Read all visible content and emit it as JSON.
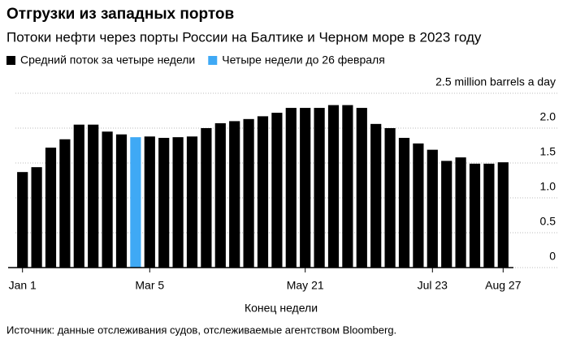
{
  "chart_data": {
    "type": "bar",
    "title": "Отгрузки из западных портов",
    "subtitle": "Потоки нефти через порты России на Балтике и Черном море в 2023 году",
    "xlabel": "Конец недели",
    "source": "Источник: данные отслеживания судов, отслеживаемые агентством Bloomberg.",
    "categories": [
      "Jan 1",
      null,
      null,
      null,
      null,
      null,
      null,
      null,
      null,
      "Mar 5",
      null,
      null,
      null,
      null,
      null,
      null,
      null,
      null,
      null,
      null,
      "May 21",
      null,
      null,
      null,
      null,
      null,
      null,
      null,
      null,
      "Jul 23",
      null,
      null,
      null,
      null,
      "Aug 27"
    ],
    "series": [
      {
        "name": "Средний поток за четыре недели",
        "color": "#000000",
        "values": [
          1.37,
          1.44,
          1.72,
          1.84,
          2.05,
          2.05,
          1.95,
          1.91,
          null,
          1.88,
          1.86,
          1.87,
          1.88,
          2.0,
          2.07,
          2.1,
          2.13,
          2.17,
          2.22,
          2.29,
          2.29,
          2.29,
          2.33,
          2.33,
          2.29,
          2.06,
          2.0,
          1.86,
          1.78,
          1.69,
          1.53,
          1.58,
          1.49,
          1.49,
          1.51
        ]
      },
      {
        "name": "Четыре недели до 26 февраля",
        "color": "#3fa9f5",
        "values": [
          null,
          null,
          null,
          null,
          null,
          null,
          null,
          null,
          1.87,
          null,
          null,
          null,
          null,
          null,
          null,
          null,
          null,
          null,
          null,
          null,
          null,
          null,
          null,
          null,
          null,
          null,
          null,
          null,
          null,
          null,
          null,
          null,
          null,
          null,
          null
        ]
      }
    ],
    "ylim": [
      0,
      2.5
    ],
    "yticks": [
      0,
      0.5,
      {
        "value": 1,
        "label": "1.0"
      },
      1.5,
      {
        "value": 2,
        "label": "2.0"
      },
      {
        "value": 2.5,
        "label": "2.5 million barrels a day"
      }
    ],
    "grid": true
  }
}
